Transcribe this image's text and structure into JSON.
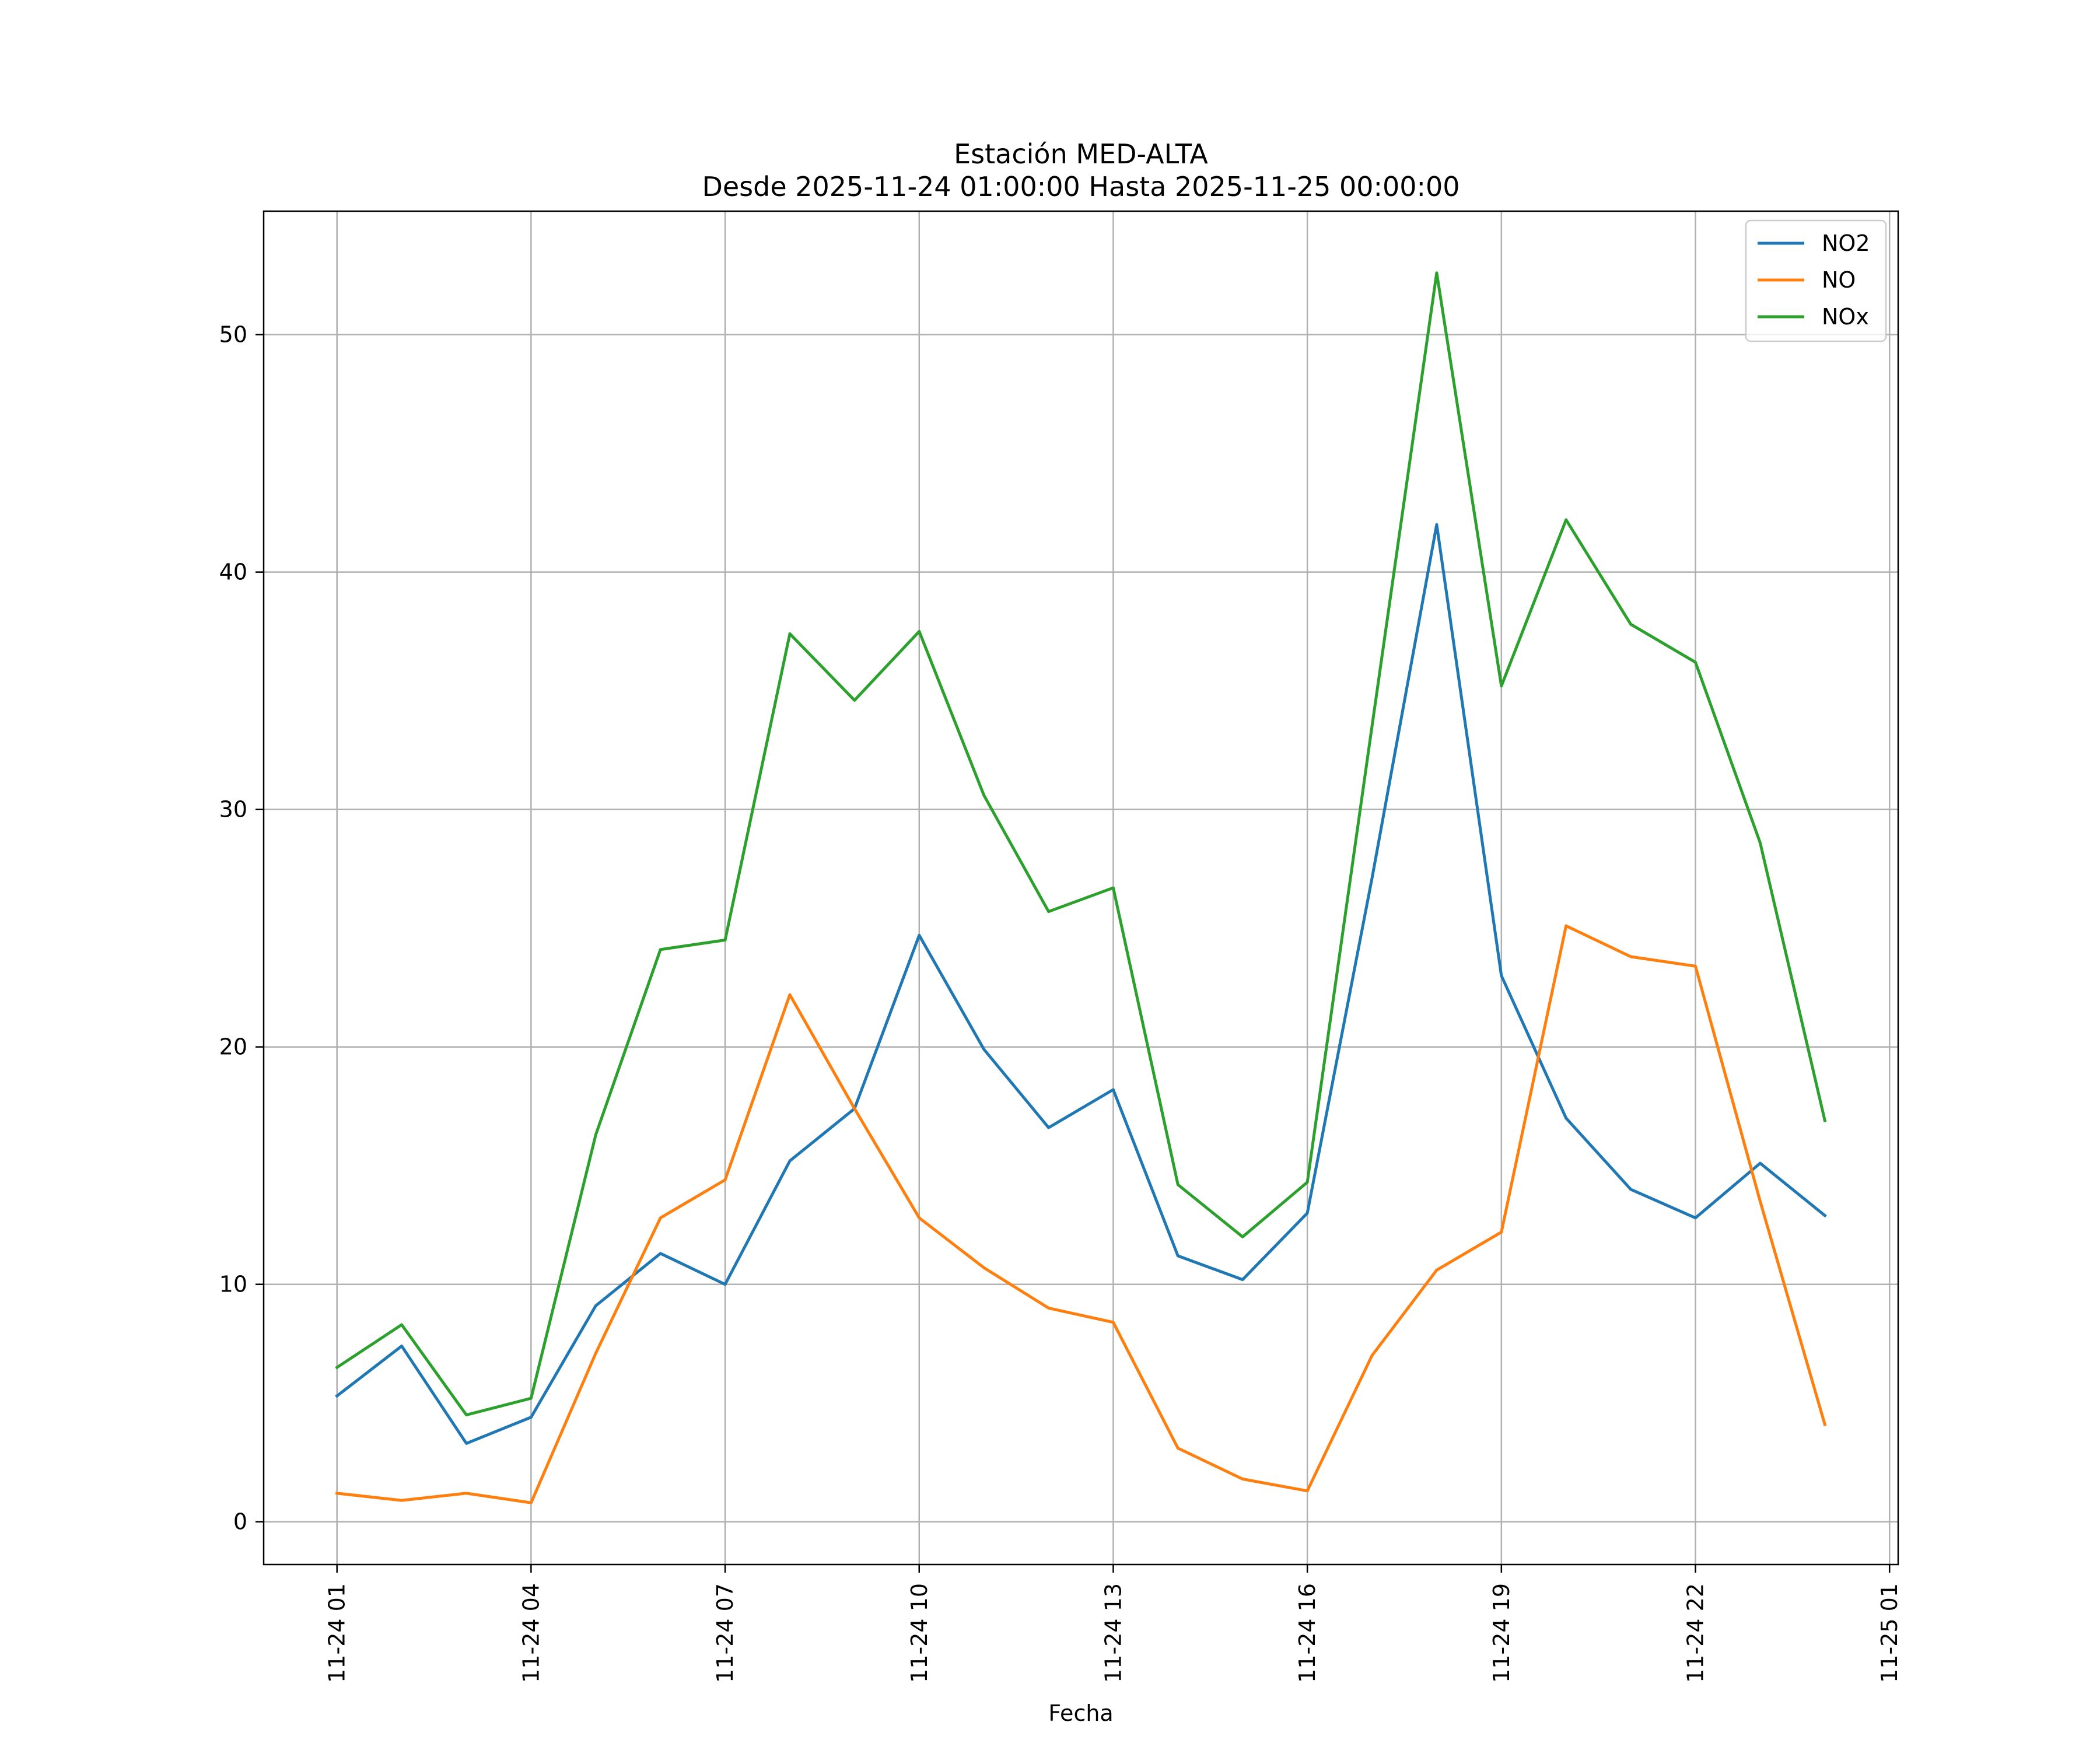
{
  "chart_data": {
    "type": "line",
    "title": "Estación MED-ALTA",
    "subtitle": "Desde 2025-11-24 01:00:00 Hasta 2025-11-25 00:00:00",
    "xlabel": "Fecha",
    "ylabel": "",
    "x": [
      "2025-11-24 01:00",
      "2025-11-24 02:00",
      "2025-11-24 03:00",
      "2025-11-24 04:00",
      "2025-11-24 05:00",
      "2025-11-24 06:00",
      "2025-11-24 07:00",
      "2025-11-24 08:00",
      "2025-11-24 09:00",
      "2025-11-24 10:00",
      "2025-11-24 11:00",
      "2025-11-24 12:00",
      "2025-11-24 13:00",
      "2025-11-24 14:00",
      "2025-11-24 15:00",
      "2025-11-24 16:00",
      "2025-11-24 17:00",
      "2025-11-24 18:00",
      "2025-11-24 19:00",
      "2025-11-24 20:00",
      "2025-11-24 21:00",
      "2025-11-24 22:00",
      "2025-11-24 23:00",
      "2025-11-25 00:00"
    ],
    "x_ticks": [
      "11-24 01",
      "11-24 04",
      "11-24 07",
      "11-24 10",
      "11-24 13",
      "11-24 16",
      "11-24 19",
      "11-24 22",
      "11-25 01"
    ],
    "x_tick_hours": [
      1,
      4,
      7,
      10,
      13,
      16,
      19,
      22,
      25
    ],
    "xlim": [
      "2025-11-23 23:52",
      "2025-11-25 01:08"
    ],
    "y_ticks": [
      0,
      10,
      20,
      30,
      40,
      50
    ],
    "ylim": [
      -1.8,
      55.2
    ],
    "grid": true,
    "legend_position": "top-right",
    "series": [
      {
        "name": "NO2",
        "color": "#1f77b4",
        "values": [
          5.3,
          7.4,
          3.3,
          4.4,
          9.1,
          11.3,
          10.0,
          15.2,
          17.4,
          24.7,
          19.9,
          16.6,
          18.2,
          11.2,
          10.2,
          13.0,
          27.1,
          42.0,
          23.0,
          17.0,
          14.0,
          12.8,
          15.1,
          12.9
        ]
      },
      {
        "name": "NO",
        "color": "#ff7f0e",
        "values": [
          1.2,
          0.9,
          1.2,
          0.8,
          7.1,
          12.8,
          14.4,
          22.2,
          17.4,
          12.8,
          10.7,
          9.0,
          8.4,
          3.1,
          1.8,
          1.3,
          7.0,
          10.6,
          12.2,
          25.1,
          23.8,
          23.4,
          13.5,
          4.1
        ]
      },
      {
        "name": "NOx",
        "color": "#2ca02c",
        "values": [
          6.5,
          8.3,
          4.5,
          5.2,
          16.3,
          24.1,
          24.5,
          37.4,
          34.6,
          37.5,
          30.6,
          25.7,
          26.7,
          14.2,
          12.0,
          14.3,
          33.5,
          52.6,
          35.2,
          42.2,
          37.8,
          36.2,
          28.6,
          16.9
        ]
      }
    ]
  }
}
